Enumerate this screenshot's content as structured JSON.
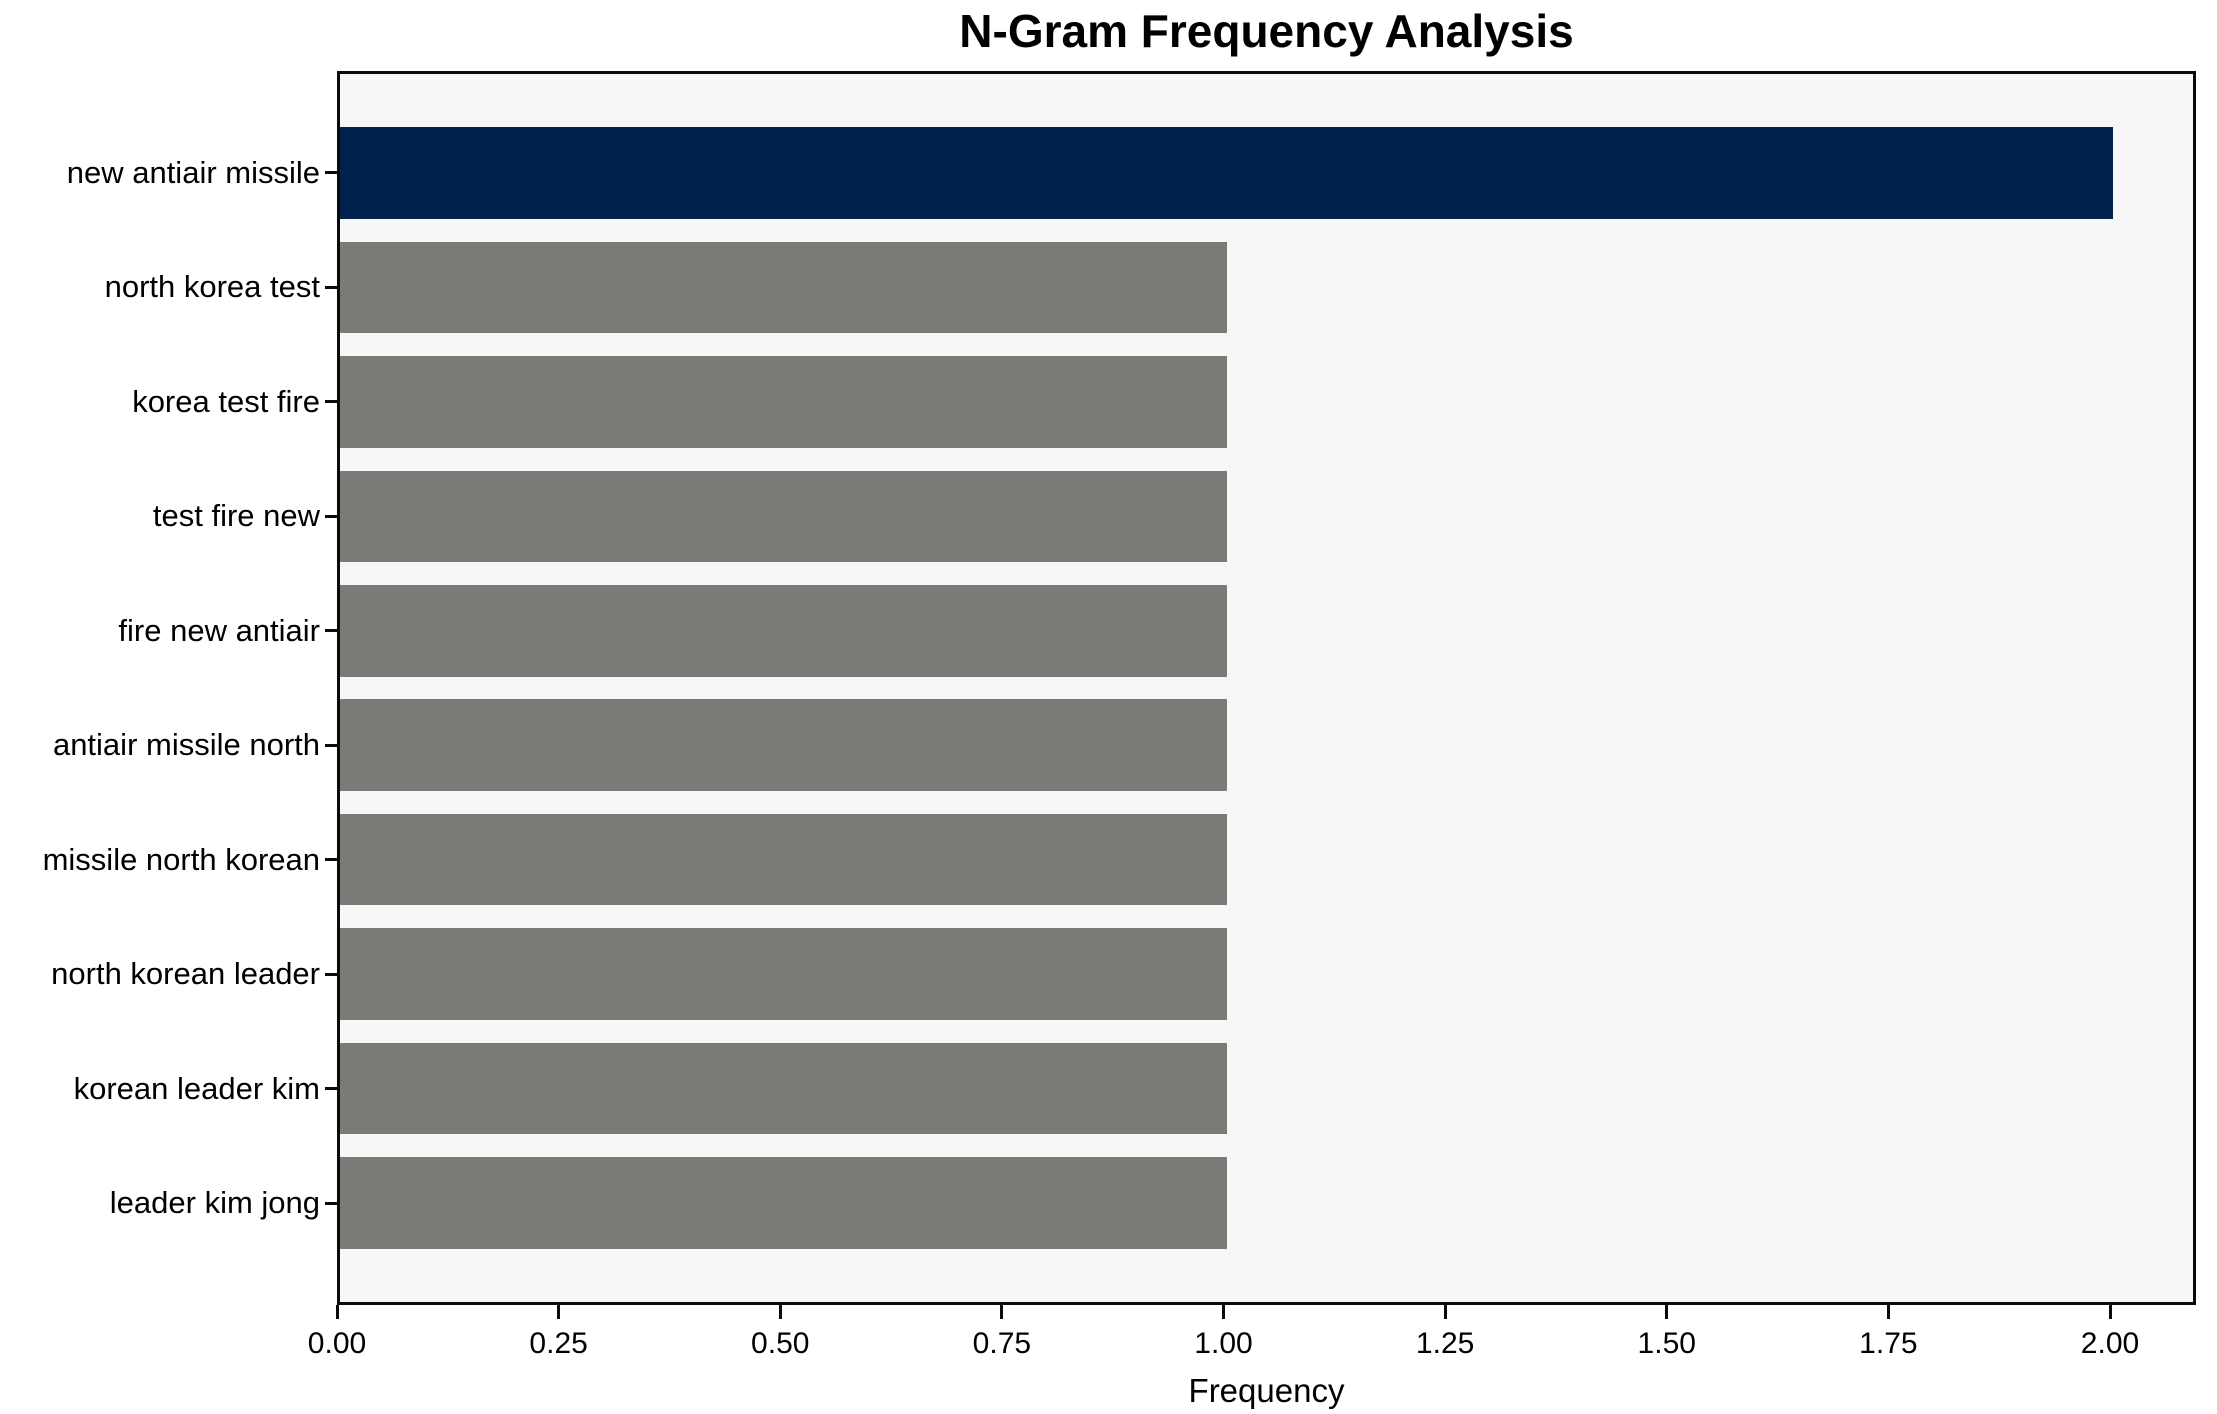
{
  "chart_data": {
    "type": "bar",
    "orientation": "horizontal",
    "title": "N-Gram Frequency Analysis",
    "xlabel": "Frequency",
    "ylabel": "",
    "categories": [
      "new antiair missile",
      "north korea test",
      "korea test fire",
      "test fire new",
      "fire new antiair",
      "antiair missile north",
      "missile north korean",
      "north korean leader",
      "korean leader kim",
      "leader kim jong"
    ],
    "values": [
      2,
      1,
      1,
      1,
      1,
      1,
      1,
      1,
      1,
      1
    ],
    "bar_colors": [
      "#00234e",
      "#7b7a77",
      "#7b7a77",
      "#7b7a77",
      "#7b7a77",
      "#7b7a77",
      "#7b7a77",
      "#7b7a77",
      "#7b7a77",
      "#7b7a77"
    ],
    "colors": {
      "highlight_bar": "#00234e",
      "default_bar": "#7b7a77",
      "plot_background": "#f7f7f7",
      "page_background": "#ffffff",
      "axis": "#0a0a0a",
      "text": "#000000"
    },
    "xlim": [
      0,
      2.097
    ],
    "xtick_values": [
      0,
      0.25,
      0.5,
      0.75,
      1.0,
      1.25,
      1.5,
      1.75,
      2.0
    ],
    "xtick_labels": [
      "0.00",
      "0.25",
      "0.50",
      "0.75",
      "1.00",
      "1.25",
      "1.50",
      "1.75",
      "2.00"
    ],
    "grid": false,
    "legend_position": "none"
  }
}
